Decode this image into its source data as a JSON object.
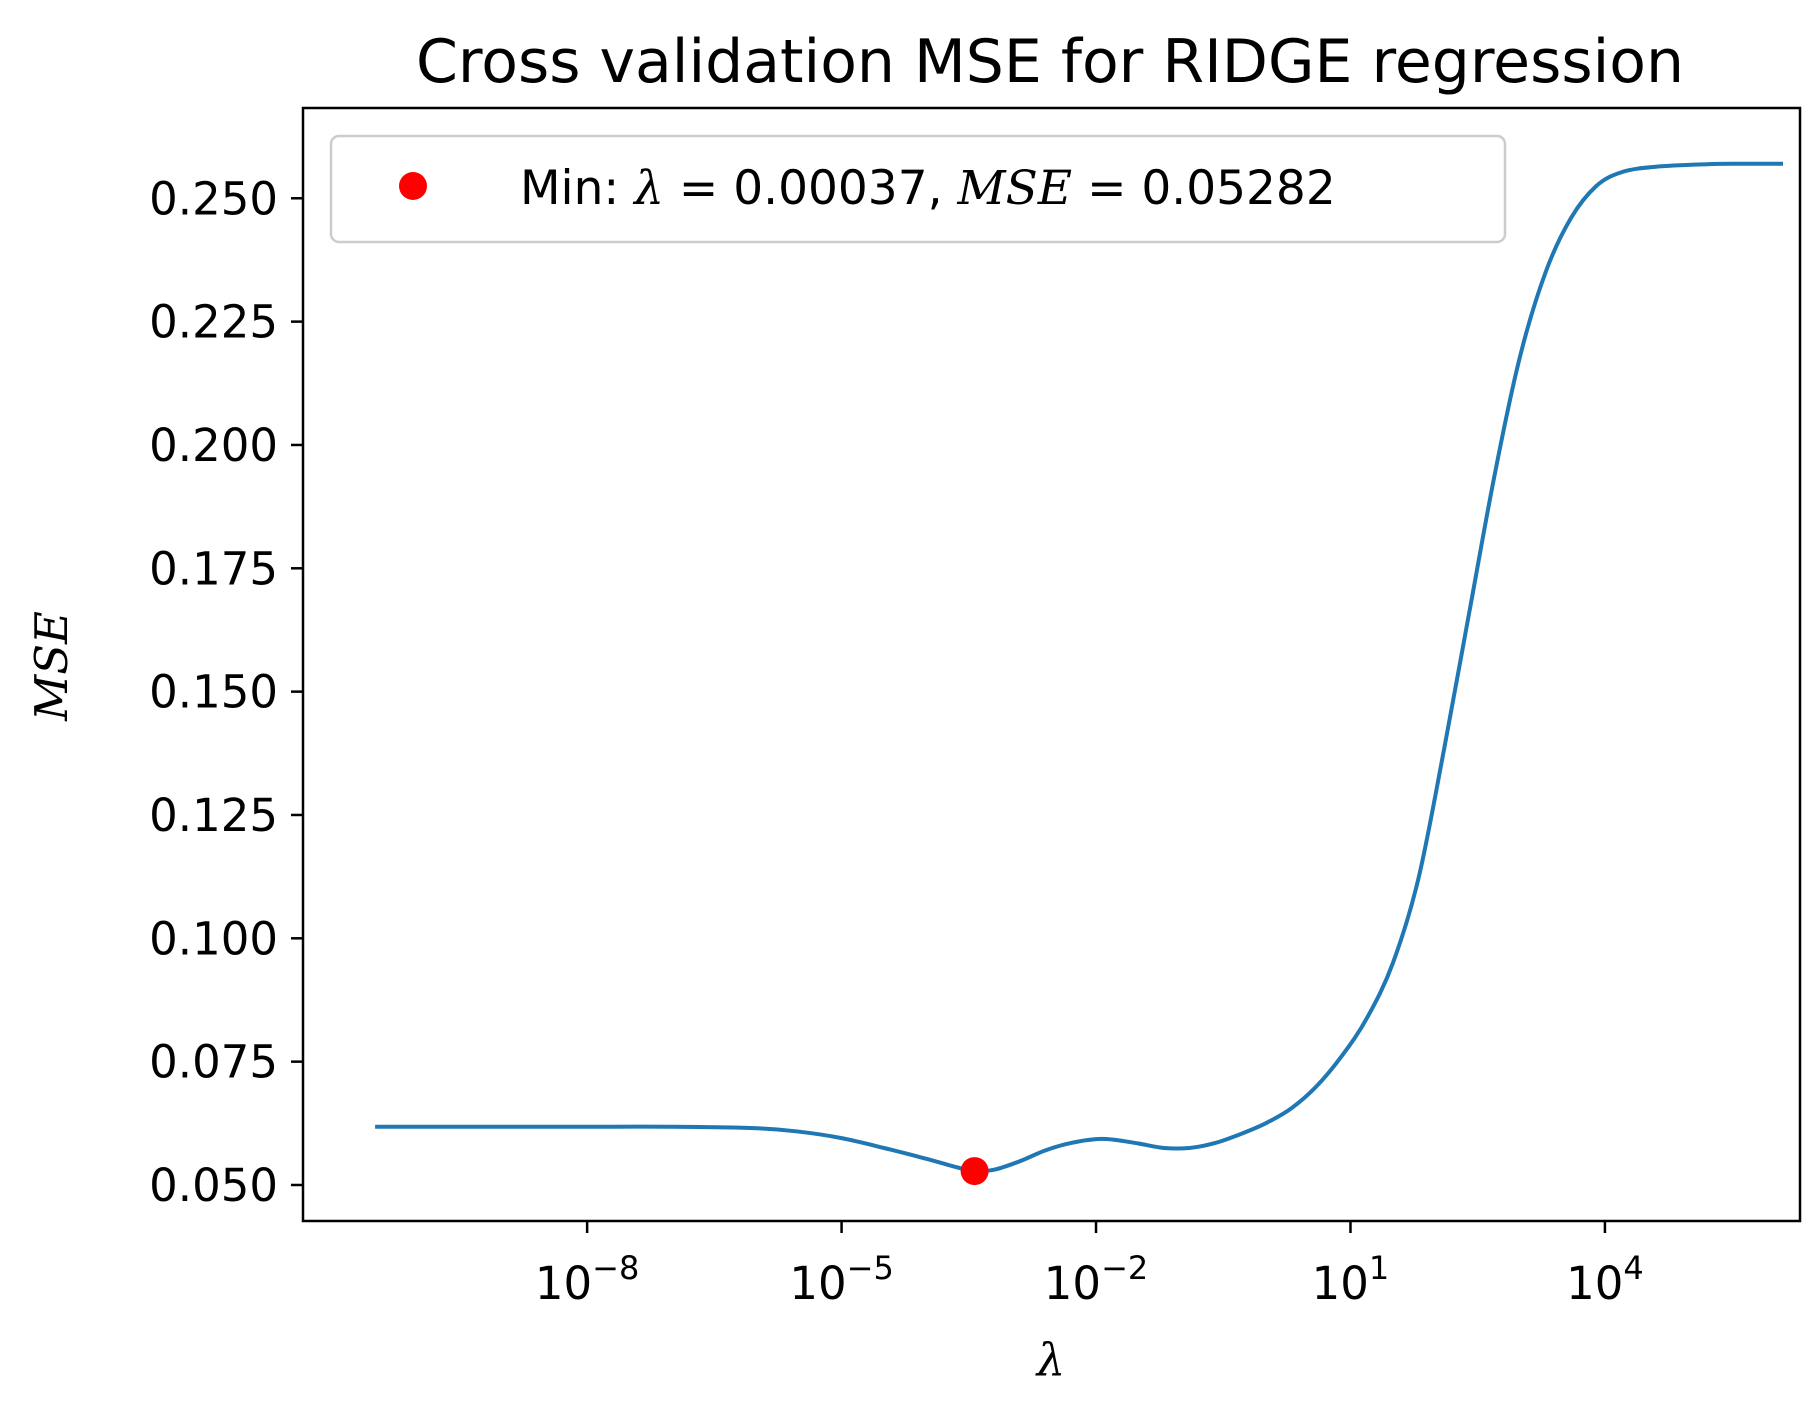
{
  "chart_data": {
    "type": "line",
    "title": "Cross validation MSE for RIDGE regression",
    "xlabel": "λ",
    "ylabel": "MSE",
    "xscale": "log",
    "xlim_log10": [
      -11.35,
      6.3
    ],
    "ylim": [
      0.0427,
      0.2683
    ],
    "grid": false,
    "legend_placement": "upper-left",
    "xticks": [
      {
        "exp": -8,
        "base": "10",
        "power": "−8"
      },
      {
        "exp": -5,
        "base": "10",
        "power": "−5"
      },
      {
        "exp": -2,
        "base": "10",
        "power": "−2"
      },
      {
        "exp": 1,
        "base": "10",
        "power": "1"
      },
      {
        "exp": 4,
        "base": "10",
        "power": "4"
      }
    ],
    "yticks": [
      0.05,
      0.075,
      0.1,
      0.125,
      0.15,
      0.175,
      0.2,
      0.225,
      0.25
    ],
    "ytick_labels": [
      "0.050",
      "0.075",
      "0.100",
      "0.125",
      "0.150",
      "0.175",
      "0.200",
      "0.225",
      "0.250"
    ],
    "series": [
      {
        "kind": "line",
        "color": "#1f77b4",
        "points_log10x": [
          [
            -10.5,
            0.0618
          ],
          [
            -9.0,
            0.0618
          ],
          [
            -8.0,
            0.0618
          ],
          [
            -7.0,
            0.0618
          ],
          [
            -6.0,
            0.0615
          ],
          [
            -5.5,
            0.0608
          ],
          [
            -5.0,
            0.0595
          ],
          [
            -4.5,
            0.0575
          ],
          [
            -4.0,
            0.0553
          ],
          [
            -3.6,
            0.0534
          ],
          [
            -3.43,
            0.05282
          ],
          [
            -3.2,
            0.0531
          ],
          [
            -2.9,
            0.0548
          ],
          [
            -2.6,
            0.057
          ],
          [
            -2.3,
            0.0585
          ],
          [
            -2.0,
            0.0593
          ],
          [
            -1.8,
            0.0592
          ],
          [
            -1.5,
            0.0584
          ],
          [
            -1.2,
            0.0575
          ],
          [
            -0.9,
            0.0575
          ],
          [
            -0.6,
            0.0585
          ],
          [
            -0.3,
            0.0603
          ],
          [
            0.0,
            0.0625
          ],
          [
            0.3,
            0.0655
          ],
          [
            0.6,
            0.07
          ],
          [
            0.9,
            0.0762
          ],
          [
            1.2,
            0.084
          ],
          [
            1.5,
            0.095
          ],
          [
            1.8,
            0.112
          ],
          [
            2.1,
            0.138
          ],
          [
            2.4,
            0.166
          ],
          [
            2.7,
            0.194
          ],
          [
            3.0,
            0.218
          ],
          [
            3.3,
            0.235
          ],
          [
            3.6,
            0.246
          ],
          [
            3.9,
            0.2525
          ],
          [
            4.2,
            0.2553
          ],
          [
            4.6,
            0.2564
          ],
          [
            5.2,
            0.2569
          ],
          [
            5.6,
            0.257
          ],
          [
            6.1,
            0.257
          ]
        ]
      },
      {
        "kind": "marker",
        "color": "#ff0000",
        "name_prefix": "Min: ",
        "name_lambda": "λ",
        "name_part1": " = 0.00037, ",
        "name_mse": "MSE",
        "name_part2": " = 0.05282",
        "point": {
          "lambda": 0.00037,
          "mse": 0.05282
        }
      }
    ]
  }
}
